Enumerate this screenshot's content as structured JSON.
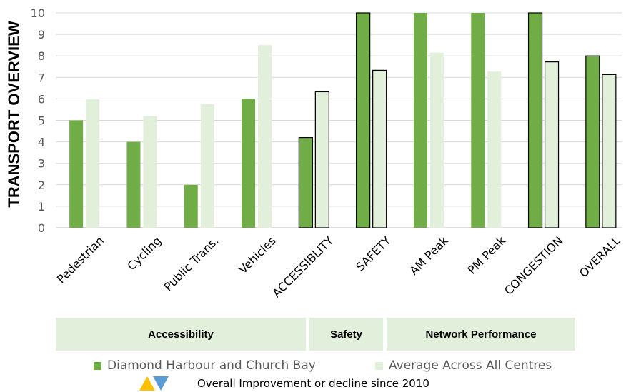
{
  "chart_data": {
    "type": "bar",
    "title": "",
    "ylabel": "TRANSPORT OVERVIEW",
    "xlabel": "",
    "ylim": [
      0,
      10
    ],
    "yticks": [
      0,
      1,
      2,
      3,
      4,
      5,
      6,
      7,
      8,
      9,
      10
    ],
    "grid": true,
    "categories": [
      "Pedestrian",
      "Cycling",
      "Public Trans.",
      "Vehicles",
      "ACCESSIBLITY",
      "SAFETY",
      "AM Peak",
      "PM Peak",
      "CONGESTION",
      "OVERALL"
    ],
    "series": [
      {
        "name": "Diamond Harbour and Church Bay",
        "color": "#70ad47",
        "values": [
          5,
          4,
          2,
          6,
          4.2,
          10,
          10,
          10,
          10,
          8
        ]
      },
      {
        "name": "Average Across All Centres",
        "color": "#e2efda",
        "values": [
          6,
          5.2,
          5.75,
          8.5,
          6.33,
          7.33,
          8.15,
          7.27,
          7.72,
          7.13
        ]
      }
    ],
    "outlined_categories": [
      "ACCESSIBLITY",
      "SAFETY",
      "CONGESTION",
      "OVERALL"
    ],
    "legend_position": "bottom"
  },
  "groups": [
    {
      "label": "Accessibility"
    },
    {
      "label": "Safety"
    },
    {
      "label": "Network Performance"
    }
  ],
  "legend": {
    "series1": "Diamond Harbour and Church Bay",
    "series2": "Average Across All Centres"
  },
  "note": {
    "text": "Overall Improvement or decline since 2010",
    "up_icon": "triangle-up-icon",
    "down_icon": "triangle-down-icon",
    "up_color": "#ffc000",
    "down_color": "#5b9bd5"
  }
}
